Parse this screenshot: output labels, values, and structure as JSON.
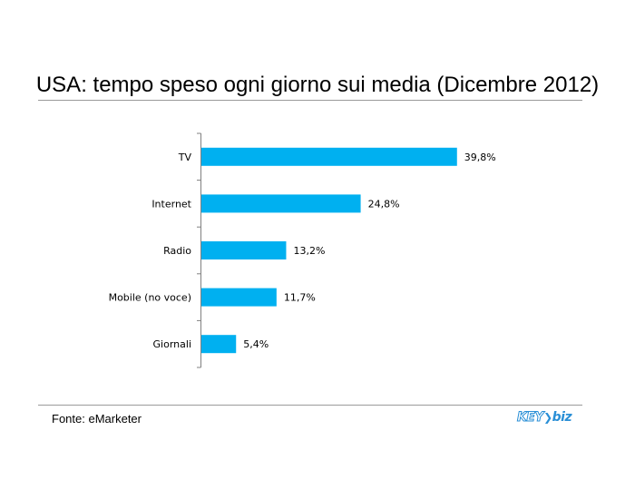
{
  "chart_data": {
    "type": "bar",
    "orientation": "horizontal",
    "title": "USA: tempo speso ogni giorno sui media (Dicembre 2012)",
    "categories": [
      "TV",
      "Internet",
      "Radio",
      "Mobile (no voce)",
      "Giornali"
    ],
    "values": [
      39.8,
      24.8,
      13.2,
      11.7,
      5.4
    ],
    "value_labels": [
      "39,8%",
      "24,8%",
      "13,2%",
      "11,7%",
      "5,4%"
    ],
    "bar_color": "#00b0f0",
    "xlim": [
      0,
      40
    ],
    "grid": false,
    "legend": "none"
  },
  "footer": {
    "source": "Fonte: eMarketer",
    "logo": "KEY4biz"
  }
}
